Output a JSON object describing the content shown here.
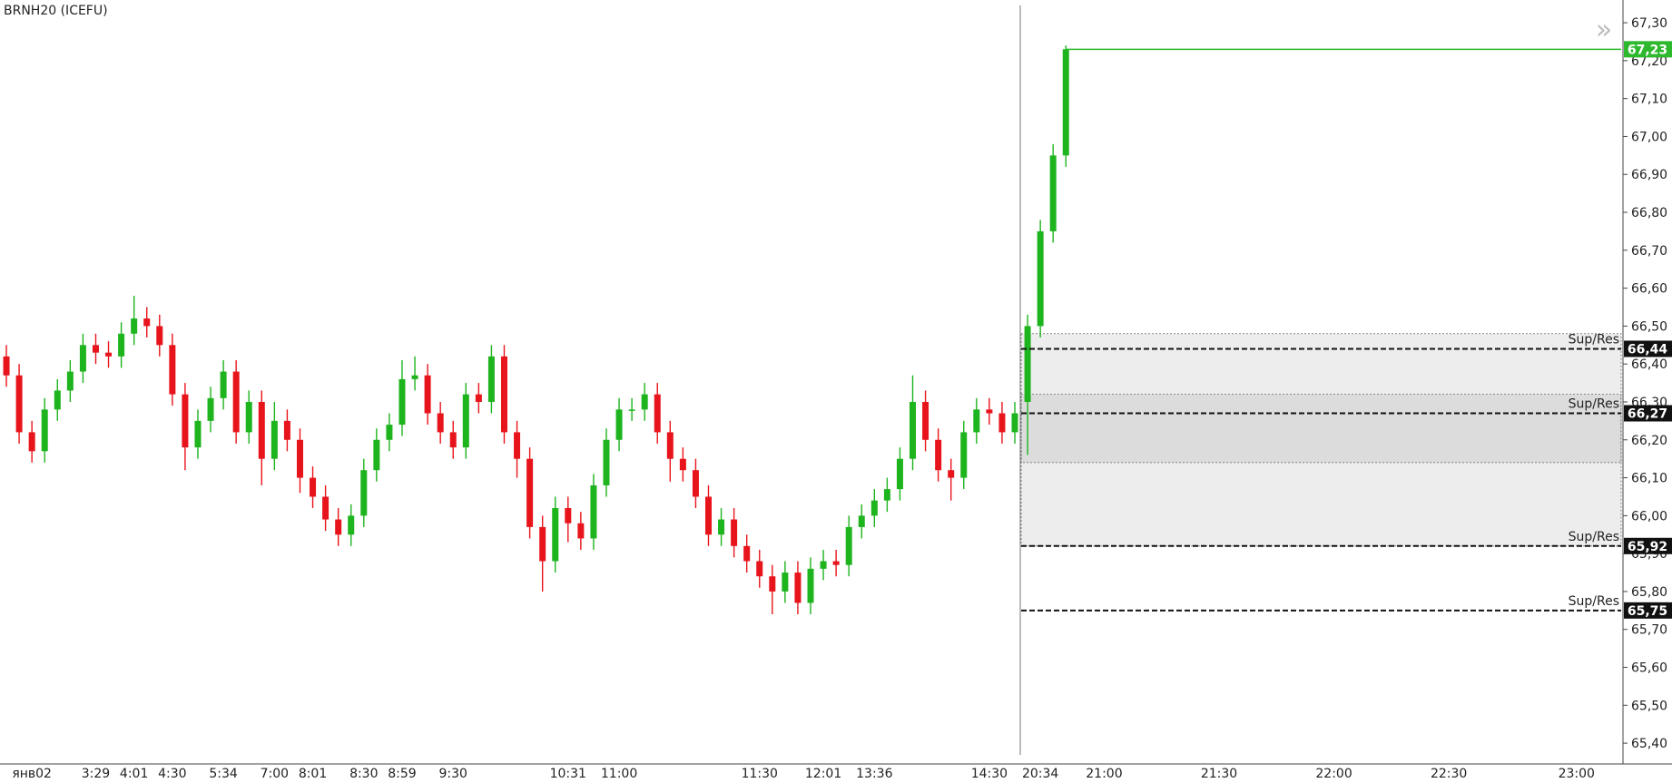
{
  "chart_data": {
    "type": "candlestick",
    "title": "BRNH20 (ICEFU)",
    "categories": [
      null,
      null,
      "янв02",
      null,
      null,
      null,
      null,
      "3:29",
      null,
      null,
      "4:01",
      null,
      null,
      "4:30",
      null,
      null,
      null,
      "5:34",
      null,
      null,
      null,
      "7:00",
      null,
      null,
      "8:01",
      null,
      null,
      null,
      "8:30",
      null,
      null,
      "8:59",
      null,
      null,
      null,
      "9:30",
      null,
      null,
      null,
      null,
      null,
      null,
      null,
      null,
      "10:31",
      null,
      null,
      null,
      "11:00",
      null,
      null,
      null,
      null,
      null,
      null,
      null,
      null,
      null,
      null,
      "11:30",
      null,
      null,
      null,
      null,
      "12:01",
      null,
      null,
      null,
      "13:36",
      null,
      null,
      null,
      null,
      null,
      null,
      null,
      null,
      "14:30",
      null,
      null,
      null,
      "20:34",
      null,
      null,
      null,
      null,
      "21:00",
      null,
      null,
      null,
      null,
      null,
      null,
      null,
      null,
      "21:30",
      null,
      null,
      null,
      null,
      null,
      null,
      null,
      null,
      "22:00",
      null,
      null,
      null,
      null,
      null,
      null,
      null,
      null,
      "22:30",
      null,
      null,
      null,
      null,
      null,
      null,
      null,
      null,
      null,
      "23:00",
      null,
      null,
      null
    ],
    "open": [
      66.42,
      66.37,
      66.22,
      66.17,
      66.28,
      66.33,
      66.38,
      66.45,
      66.43,
      66.42,
      66.48,
      66.52,
      66.5,
      66.45,
      66.32,
      66.18,
      66.25,
      66.31,
      66.38,
      66.22,
      66.3,
      66.15,
      66.25,
      66.2,
      66.1,
      66.05,
      65.99,
      65.95,
      66.0,
      66.12,
      66.2,
      66.24,
      66.36,
      66.37,
      66.27,
      66.22,
      66.18,
      66.32,
      66.3,
      66.42,
      66.22,
      66.15,
      65.97,
      65.88,
      66.02,
      65.98,
      65.94,
      66.08,
      66.2,
      66.28,
      66.28,
      66.32,
      66.22,
      66.15,
      66.12,
      66.05,
      65.95,
      65.99,
      65.92,
      65.88,
      65.84,
      65.8,
      65.85,
      65.77,
      65.86,
      65.88,
      65.87,
      65.97,
      66.0,
      66.04,
      66.07,
      66.15,
      66.3,
      66.2,
      66.12,
      66.1,
      66.22,
      66.28,
      66.27,
      66.22,
      66.3,
      66.5,
      66.75,
      66.95,
      null,
      null,
      null,
      null,
      null,
      null,
      null,
      null,
      null,
      null,
      null,
      null,
      null,
      null,
      null,
      null,
      null,
      null,
      null,
      null,
      null,
      null,
      null,
      null,
      null,
      null,
      null,
      null,
      null,
      null,
      null,
      null,
      null,
      null,
      null,
      null,
      null,
      null,
      null,
      null,
      null,
      null,
      null
    ],
    "high": [
      66.45,
      66.4,
      66.25,
      66.31,
      66.36,
      66.41,
      66.48,
      66.48,
      66.46,
      66.51,
      66.58,
      66.55,
      66.53,
      66.48,
      66.35,
      66.28,
      66.34,
      66.41,
      66.41,
      66.33,
      66.33,
      66.3,
      66.28,
      66.23,
      66.13,
      66.08,
      66.02,
      66.03,
      66.15,
      66.23,
      66.27,
      66.41,
      66.42,
      66.4,
      66.3,
      66.25,
      66.35,
      66.35,
      66.45,
      66.45,
      66.25,
      66.18,
      66.0,
      66.05,
      66.05,
      66.01,
      66.11,
      66.23,
      66.31,
      66.31,
      66.35,
      66.35,
      66.25,
      66.18,
      66.15,
      66.08,
      66.02,
      66.02,
      65.95,
      65.91,
      65.87,
      65.88,
      65.88,
      65.89,
      65.91,
      65.91,
      66.0,
      66.03,
      66.07,
      66.1,
      66.18,
      66.37,
      66.33,
      66.23,
      66.15,
      66.25,
      66.31,
      66.31,
      66.3,
      66.3,
      66.53,
      66.78,
      66.98,
      67.24,
      null,
      null,
      null,
      null,
      null,
      null,
      null,
      null,
      null,
      null,
      null,
      null,
      null,
      null,
      null,
      null,
      null,
      null,
      null,
      null,
      null,
      null,
      null,
      null,
      null,
      null,
      null,
      null,
      null,
      null,
      null,
      null,
      null,
      null,
      null,
      null,
      null,
      null,
      null,
      null,
      null,
      null,
      null
    ],
    "low": [
      66.34,
      66.19,
      66.14,
      66.14,
      66.25,
      66.3,
      66.35,
      66.4,
      66.39,
      66.39,
      66.45,
      66.47,
      66.42,
      66.29,
      66.12,
      66.15,
      66.22,
      66.28,
      66.19,
      66.19,
      66.08,
      66.12,
      66.17,
      66.06,
      66.02,
      65.96,
      65.92,
      65.92,
      65.97,
      66.09,
      66.17,
      66.21,
      66.33,
      66.24,
      66.19,
      66.15,
      66.15,
      66.27,
      66.27,
      66.19,
      66.1,
      65.94,
      65.8,
      65.85,
      65.93,
      65.91,
      65.91,
      66.05,
      66.17,
      66.25,
      66.25,
      66.19,
      66.09,
      66.09,
      66.02,
      65.92,
      65.92,
      65.89,
      65.85,
      65.81,
      65.74,
      65.77,
      65.74,
      65.74,
      65.83,
      65.84,
      65.84,
      65.94,
      65.97,
      66.01,
      66.04,
      66.12,
      66.17,
      66.09,
      66.04,
      66.07,
      66.19,
      66.24,
      66.19,
      66.19,
      66.16,
      66.47,
      66.72,
      66.92,
      null,
      null,
      null,
      null,
      null,
      null,
      null,
      null,
      null,
      null,
      null,
      null,
      null,
      null,
      null,
      null,
      null,
      null,
      null,
      null,
      null,
      null,
      null,
      null,
      null,
      null,
      null,
      null,
      null,
      null,
      null,
      null,
      null,
      null,
      null,
      null,
      null,
      null,
      null,
      null,
      null,
      null,
      null
    ],
    "close": [
      66.37,
      66.22,
      66.17,
      66.28,
      66.33,
      66.38,
      66.45,
      66.43,
      66.42,
      66.48,
      66.52,
      66.5,
      66.45,
      66.32,
      66.18,
      66.25,
      66.31,
      66.38,
      66.22,
      66.3,
      66.15,
      66.25,
      66.2,
      66.1,
      66.05,
      65.99,
      65.95,
      66.0,
      66.12,
      66.2,
      66.24,
      66.36,
      66.37,
      66.27,
      66.22,
      66.18,
      66.32,
      66.3,
      66.42,
      66.22,
      66.15,
      65.97,
      65.88,
      66.02,
      65.98,
      65.94,
      66.08,
      66.2,
      66.28,
      66.28,
      66.32,
      66.22,
      66.15,
      66.12,
      66.05,
      65.95,
      65.99,
      65.92,
      65.88,
      65.84,
      65.8,
      65.85,
      65.77,
      65.86,
      65.88,
      65.87,
      65.97,
      66.0,
      66.04,
      66.07,
      66.15,
      66.3,
      66.2,
      66.12,
      66.1,
      66.22,
      66.28,
      66.27,
      66.22,
      66.27,
      66.5,
      66.75,
      66.95,
      67.23,
      null,
      null,
      null,
      null,
      null,
      null,
      null,
      null,
      null,
      null,
      null,
      null,
      null,
      null,
      null,
      null,
      null,
      null,
      null,
      null,
      null,
      null,
      null,
      null,
      null,
      null,
      null,
      null,
      null,
      null,
      null,
      null,
      null,
      null,
      null,
      null,
      null,
      null,
      null,
      null,
      null,
      null,
      null
    ],
    "up_color": "#1db41d",
    "down_color": "#e8141b",
    "ylim": [
      65.35,
      67.36
    ],
    "yticks": [
      {
        "value": 65.4,
        "label": "65,40"
      },
      {
        "value": 65.5,
        "label": "65,50"
      },
      {
        "value": 65.6,
        "label": "65,60"
      },
      {
        "value": 65.7,
        "label": "65,70"
      },
      {
        "value": 65.8,
        "label": "65,80"
      },
      {
        "value": 65.9,
        "label": "65,90"
      },
      {
        "value": 66.0,
        "label": "66,00"
      },
      {
        "value": 66.1,
        "label": "66,10"
      },
      {
        "value": 66.2,
        "label": "66,20"
      },
      {
        "value": 66.3,
        "label": "66,30"
      },
      {
        "value": 66.4,
        "label": "66,40"
      },
      {
        "value": 66.5,
        "label": "66,50"
      },
      {
        "value": 66.6,
        "label": "66,60"
      },
      {
        "value": 66.7,
        "label": "66,70"
      },
      {
        "value": 66.8,
        "label": "66,80"
      },
      {
        "value": 66.9,
        "label": "66,90"
      },
      {
        "value": 67.0,
        "label": "67,00"
      },
      {
        "value": 67.1,
        "label": "67,10"
      },
      {
        "value": 67.2,
        "label": "67,20"
      },
      {
        "value": 67.3,
        "label": "67,30"
      }
    ],
    "zones": [
      {
        "top": 66.48,
        "bottom": 66.14
      },
      {
        "top": 66.32,
        "bottom": 65.92
      }
    ],
    "levels": [
      {
        "value": 66.44,
        "label": "66,44",
        "text": "Sup/Res"
      },
      {
        "value": 66.27,
        "label": "66,27",
        "text": "Sup/Res"
      },
      {
        "value": 65.92,
        "label": "65,92",
        "text": "Sup/Res"
      },
      {
        "value": 65.75,
        "label": "65,75",
        "text": "Sup/Res"
      }
    ],
    "last_price": {
      "value": 67.23,
      "label": "67,23"
    },
    "last_color": "#2db82d"
  }
}
